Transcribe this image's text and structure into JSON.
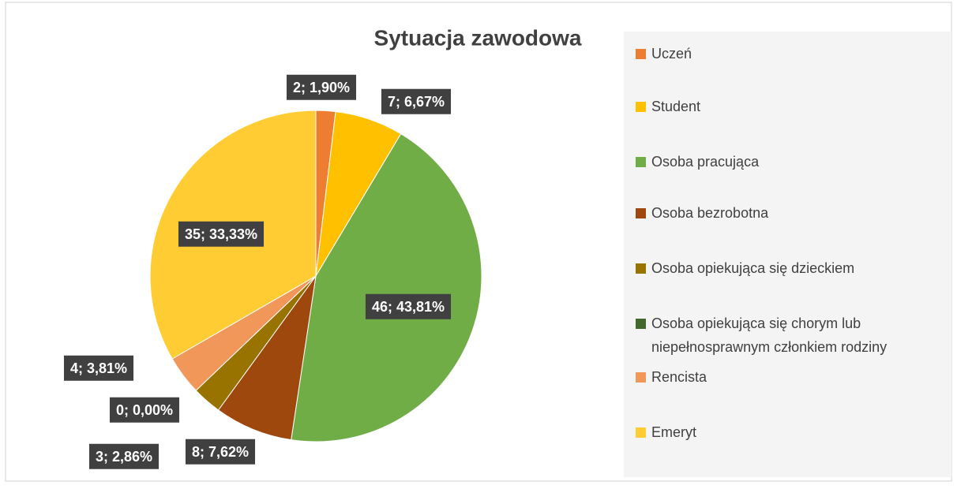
{
  "chart_data": {
    "type": "pie",
    "title": "Sytuacja zawodowa",
    "categories": [
      "Uczeń",
      "Student",
      "Osoba pracująca",
      "Osoba bezrobotna",
      "Osoba opiekująca się dzieckiem",
      "Osoba opiekująca się chorym lub niepełnosprawnym członkiem rodziny",
      "Rencista",
      "Emeryt"
    ],
    "values": [
      2,
      7,
      46,
      8,
      3,
      0,
      4,
      35
    ],
    "value_labels": [
      "2; 1,90%",
      "7; 6,67%",
      "46; 43,81%",
      "8; 7,62%",
      "3; 2,86%",
      "0; 0,00%",
      "4; 3,81%",
      "35; 33,33%"
    ],
    "colors": [
      "#ed7d31",
      "#ffc000",
      "#70ad47",
      "#9e480e",
      "#997300",
      "#43682b",
      "#f1975a",
      "#ffcd33"
    ],
    "legend": "right"
  }
}
